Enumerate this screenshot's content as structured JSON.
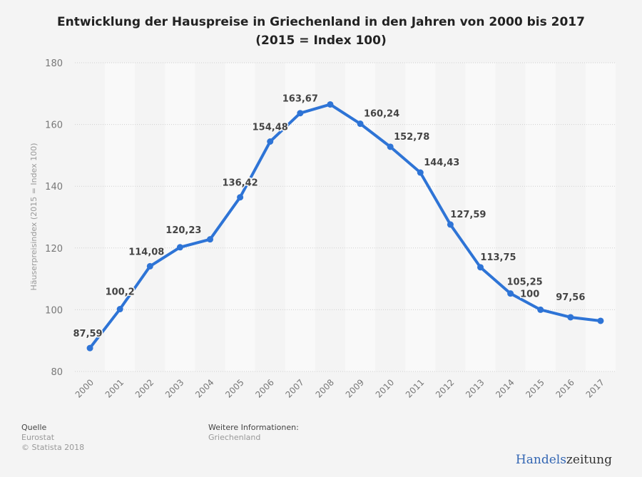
{
  "header": {
    "title_line1": "Entwicklung der Hauspreise in Griechenland in den Jahren von 2000 bis 2017",
    "title_line2": "(2015 = Index 100)"
  },
  "chart_data": {
    "type": "line",
    "title": "Entwicklung der Hauspreise in Griechenland in den Jahren von 2000 bis 2017 (2015 = Index 100)",
    "xlabel": "",
    "ylabel": "Häuserpreisindex (2015 = Index 100)",
    "ylim": [
      80,
      180
    ],
    "yticks": [
      80,
      100,
      120,
      140,
      160,
      180
    ],
    "ytick_labels": [
      "80",
      "100",
      "120",
      "140",
      "160",
      "180"
    ],
    "grid": true,
    "categories": [
      "2000",
      "2001",
      "2002",
      "2003",
      "2004",
      "2005",
      "2006",
      "2007",
      "2008",
      "2009",
      "2010",
      "2011",
      "2012",
      "2013",
      "2014",
      "2015",
      "2016",
      "2017"
    ],
    "series": [
      {
        "name": "Häuserpreisindex",
        "color": "#2e74d6",
        "values": [
          87.59,
          100.2,
          114.08,
          120.23,
          122.8,
          136.42,
          154.48,
          163.67,
          166.5,
          160.24,
          152.78,
          144.43,
          127.59,
          113.75,
          105.25,
          100,
          97.56,
          96.4
        ],
        "labels": [
          "87,59",
          "100,2",
          "114,08",
          "120,23",
          "",
          "136,42",
          "154,48",
          "163,67",
          "",
          "160,24",
          "152,78",
          "144,43",
          "127,59",
          "113,75",
          "105,25",
          "100",
          "97,56",
          ""
        ]
      }
    ]
  },
  "footer": {
    "source_heading": "Quelle",
    "source": "Eurostat",
    "copyright": "© Statista 2018",
    "info_heading": "Weitere Informationen:",
    "info": "Griechenland"
  },
  "brand": {
    "part1": "Handels",
    "part2": "zeitung"
  }
}
